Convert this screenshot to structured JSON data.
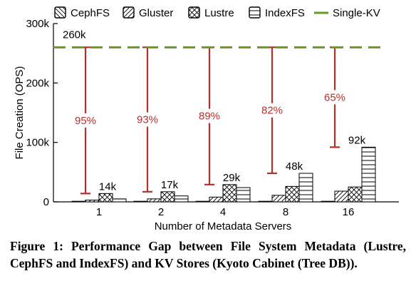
{
  "chart_data": {
    "type": "bar",
    "categories": [
      "1",
      "2",
      "4",
      "8",
      "16"
    ],
    "series": [
      {
        "name": "CephFS",
        "values": [
          1000,
          1000,
          1000,
          1000,
          1000
        ]
      },
      {
        "name": "Gluster",
        "values": [
          3000,
          5000,
          8000,
          11000,
          18000
        ]
      },
      {
        "name": "Lustre",
        "values": [
          14000,
          17000,
          29000,
          26000,
          25000
        ]
      },
      {
        "name": "IndexFS",
        "values": [
          5000,
          10000,
          24000,
          48000,
          92000
        ]
      }
    ],
    "reference_line": {
      "name": "Single-KV",
      "value": 260000,
      "label": "260k"
    },
    "gap_annotations": [
      {
        "category": "1",
        "from": 14000,
        "to": 260000,
        "label": "95%"
      },
      {
        "category": "2",
        "from": 17000,
        "to": 260000,
        "label": "93%"
      },
      {
        "category": "4",
        "from": 29000,
        "to": 260000,
        "label": "89%"
      },
      {
        "category": "8",
        "from": 48000,
        "to": 260000,
        "label": "82%"
      },
      {
        "category": "16",
        "from": 92000,
        "to": 260000,
        "label": "65%"
      }
    ],
    "data_labels": [
      {
        "category": "1",
        "label": "14k",
        "value": 14000
      },
      {
        "category": "2",
        "label": "17k",
        "value": 17000
      },
      {
        "category": "4",
        "label": "29k",
        "value": 29000
      },
      {
        "category": "8",
        "label": "48k",
        "value": 48000
      },
      {
        "category": "16",
        "label": "92k",
        "value": 92000
      }
    ],
    "yticks": [
      {
        "value": 0,
        "label": "0"
      },
      {
        "value": 100000,
        "label": "100k"
      },
      {
        "value": 200000,
        "label": "200k"
      },
      {
        "value": 300000,
        "label": "300k"
      }
    ],
    "ylim": [
      0,
      300000
    ],
    "xlabel": "Number of Metadata Servers",
    "ylabel": "File Creation (OPS)",
    "legend_position": "top",
    "colors": {
      "reference": "#6b9a1f",
      "gap": "#b5302b",
      "bars": "#000000"
    }
  },
  "caption": "Figure 1: Performance Gap between File System Metadata (Lustre, CephFS and IndexFS) and KV Stores (Kyoto Cabinet (Tree DB))."
}
